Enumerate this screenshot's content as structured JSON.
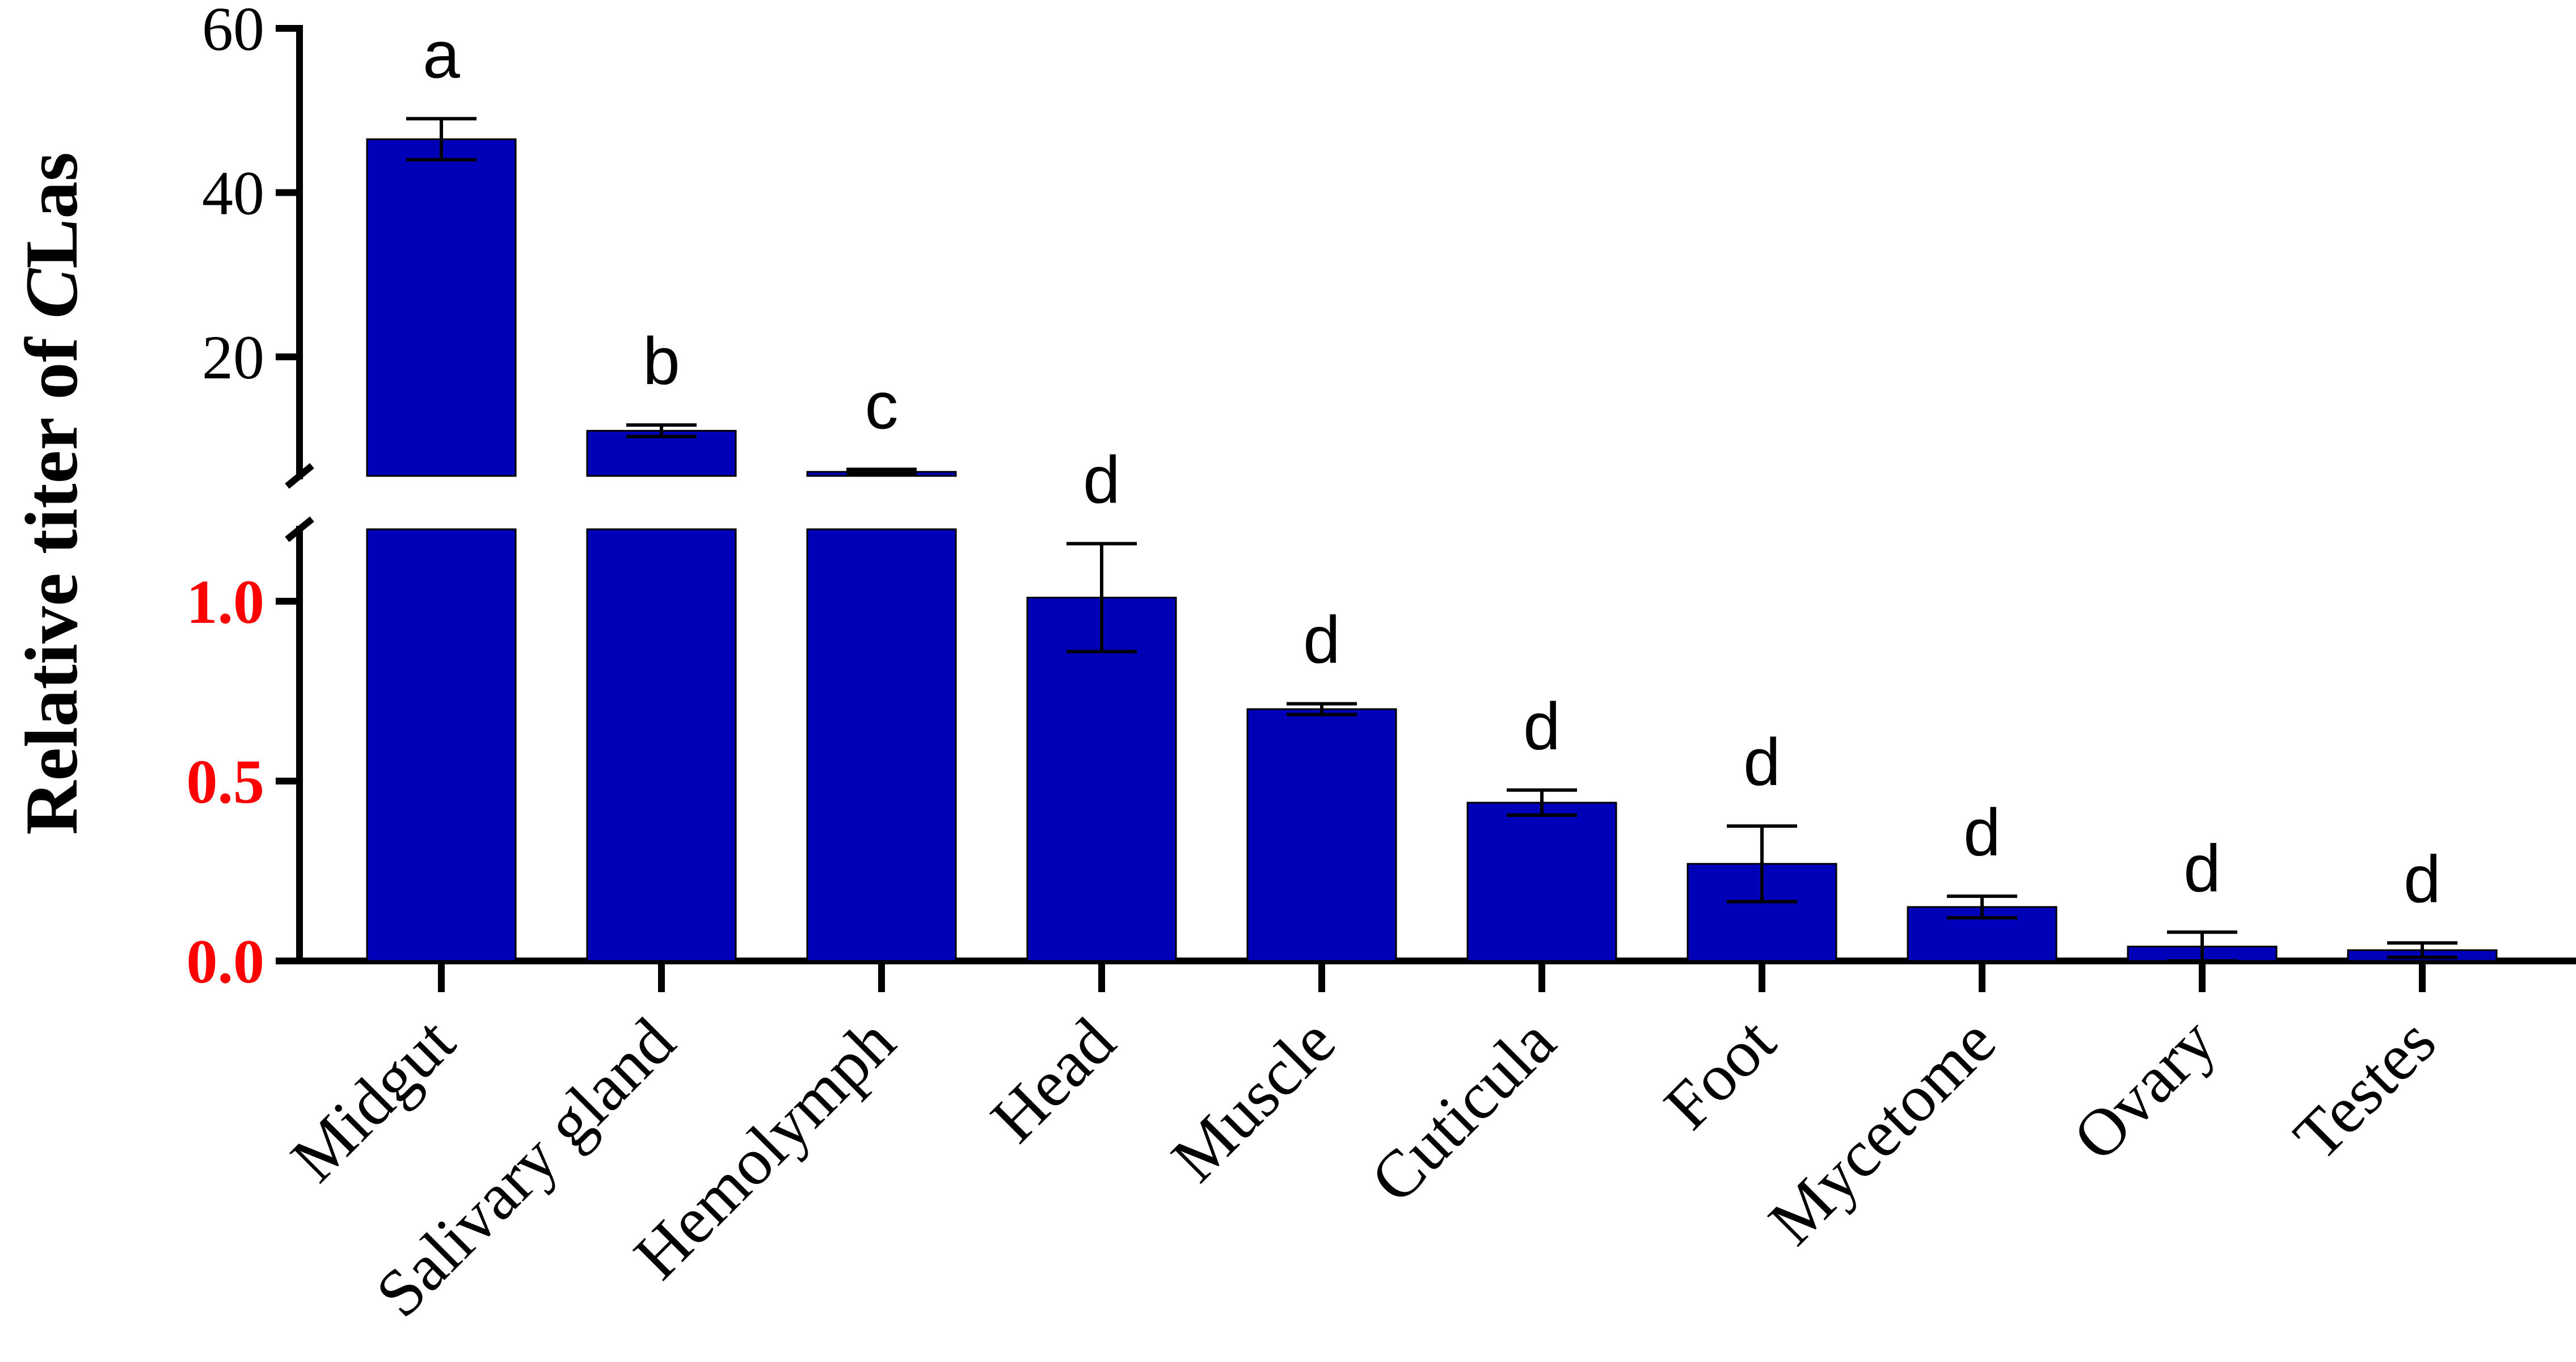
{
  "chart_data": {
    "type": "bar",
    "ylabel_prefix": "Relative titer of ",
    "ylabel_italic": "C",
    "ylabel_suffix": "Las",
    "bar_color": "#0000B8",
    "low_tick_color": "#FF0000",
    "categories": [
      "Midgut",
      "Salivary gland",
      "Hemolymph",
      "Head",
      "Muscle",
      "Cuticula",
      "Foot",
      "Mycetome",
      "Ovary",
      "Testes"
    ],
    "values": [
      46.5,
      11.0,
      6.0,
      1.01,
      0.7,
      0.44,
      0.27,
      0.15,
      0.04,
      0.03
    ],
    "errors": [
      2.5,
      0.7,
      0.3,
      0.15,
      0.015,
      0.035,
      0.105,
      0.03,
      0.04,
      0.02
    ],
    "significance": [
      "a",
      "b",
      "c",
      "d",
      "d",
      "d",
      "d",
      "d",
      "d",
      "d"
    ],
    "y_upper_segment": {
      "range": [
        5.5,
        60
      ],
      "ticks": [
        20,
        40,
        60
      ],
      "tick_labels": [
        "20",
        "40",
        "60"
      ]
    },
    "y_lower_segment": {
      "range": [
        0,
        1.2
      ],
      "ticks": [
        0.0,
        0.5,
        1.0
      ],
      "tick_labels": [
        "0.0",
        "0.5",
        "1.0"
      ]
    },
    "axis_break": true,
    "legend": "none",
    "grid": false
  }
}
